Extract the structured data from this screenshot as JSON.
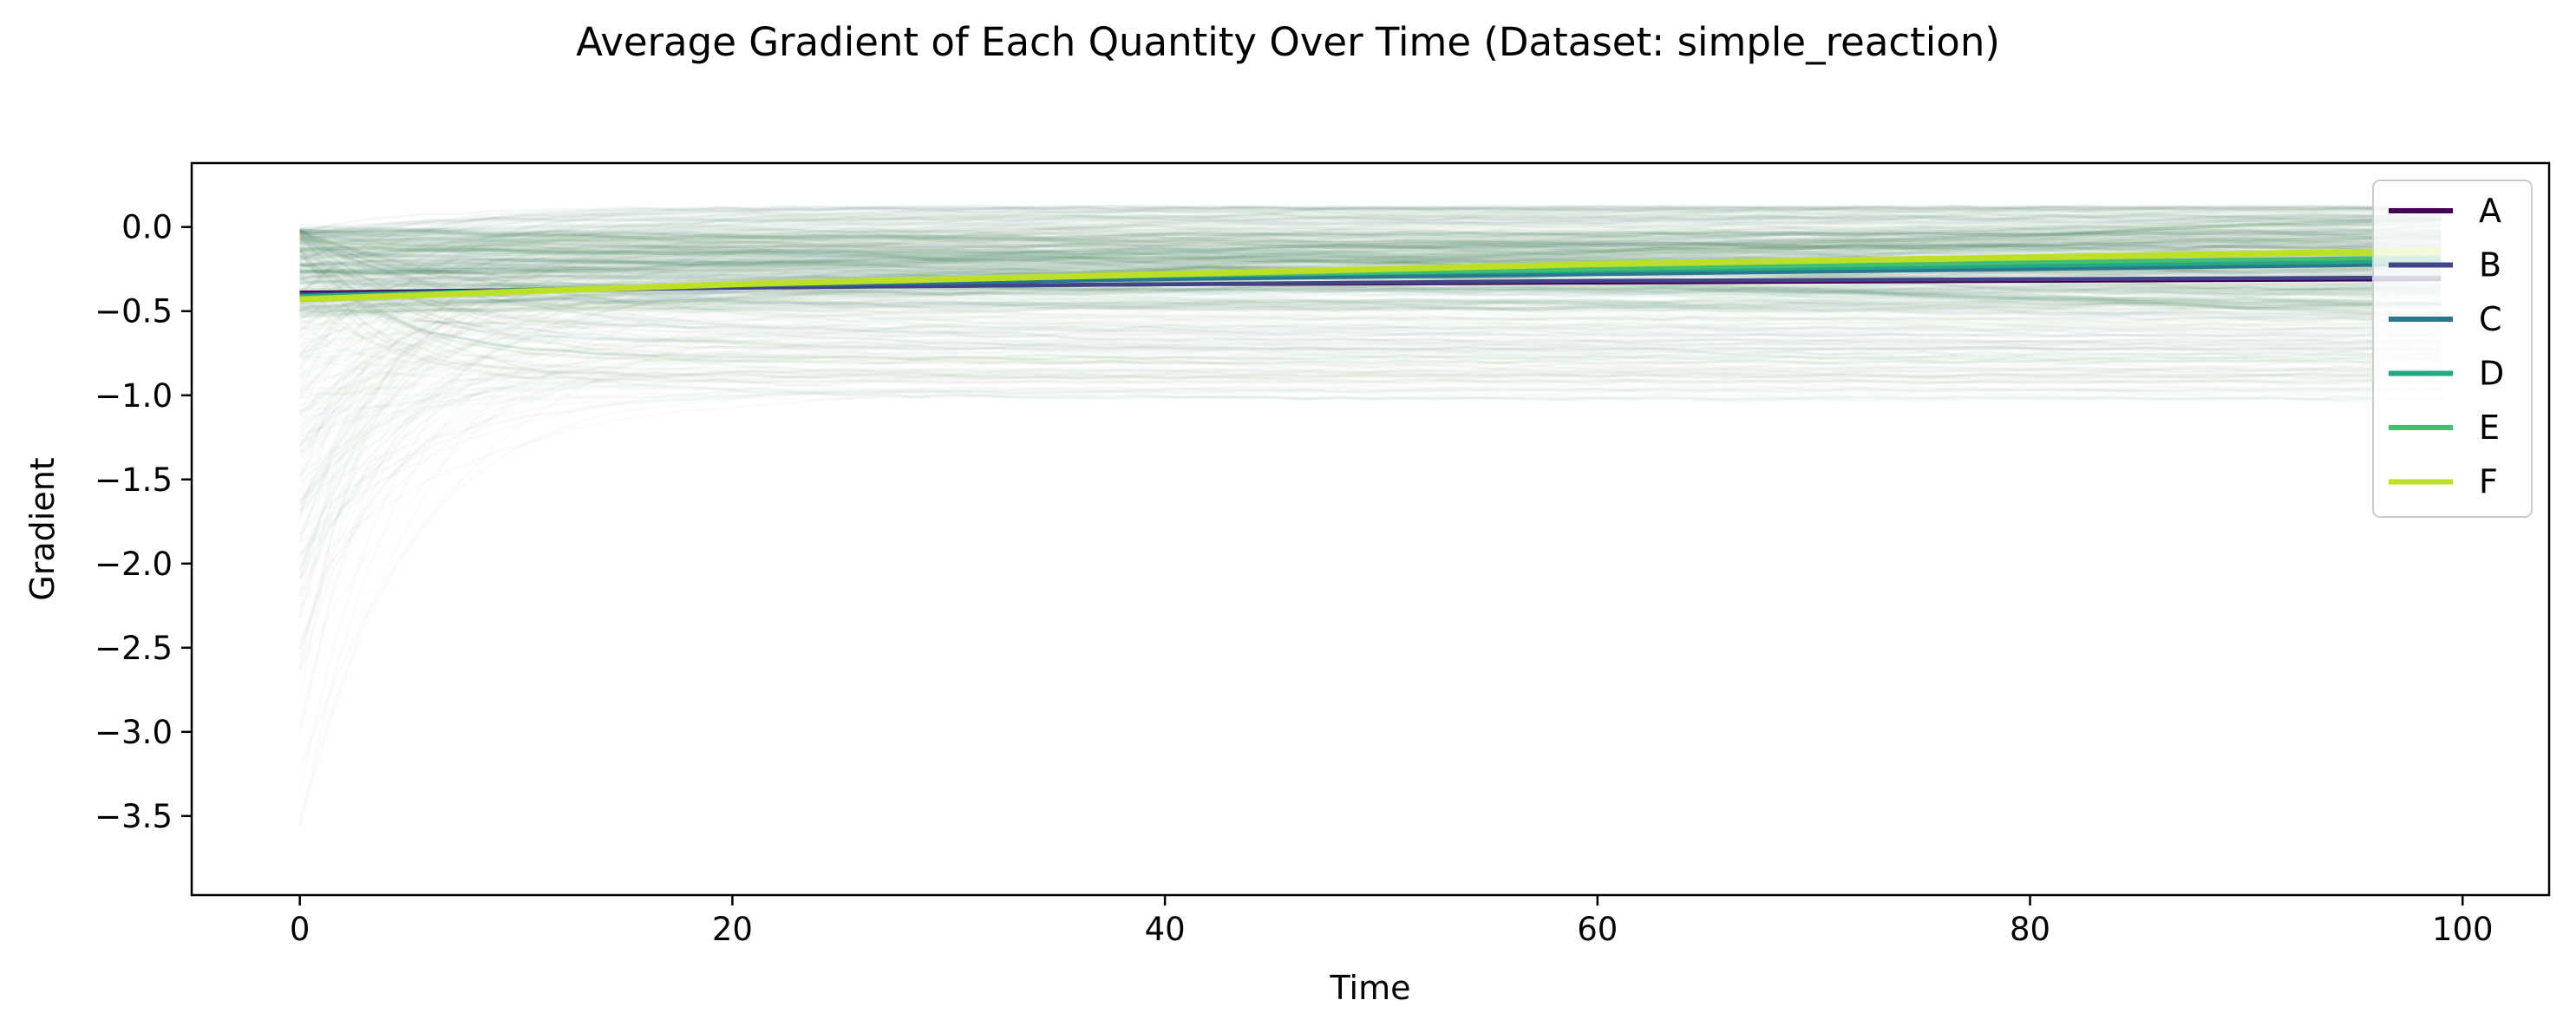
{
  "chart_data": {
    "type": "line",
    "title": "Average Gradient of Each Quantity Over Time (Dataset: simple_reaction)",
    "xlabel": "Time",
    "ylabel": "Gradient",
    "xlim": [
      -5,
      104
    ],
    "ylim": [
      -3.97,
      0.38
    ],
    "xticks": [
      0,
      20,
      40,
      60,
      80,
      100
    ],
    "xtick_labels": [
      "0",
      "20",
      "40",
      "60",
      "80",
      "100"
    ],
    "yticks": [
      0.0,
      -0.5,
      -1.0,
      -1.5,
      -2.0,
      -2.5,
      -3.0,
      -3.5
    ],
    "ytick_labels": [
      "0.0",
      "−0.5",
      "−1.0",
      "−1.5",
      "−2.0",
      "−2.5",
      "−3.0",
      "−3.5"
    ],
    "grid": false,
    "legend_position": "upper right",
    "series": [
      {
        "name": "A",
        "color": "#440154",
        "x": [
          0,
          20,
          40,
          60,
          80,
          99
        ],
        "values": [
          -0.39,
          -0.36,
          -0.34,
          -0.33,
          -0.32,
          -0.31
        ]
      },
      {
        "name": "B",
        "color": "#414487",
        "x": [
          0,
          20,
          40,
          60,
          80,
          99
        ],
        "values": [
          -0.4,
          -0.36,
          -0.34,
          -0.32,
          -0.31,
          -0.3
        ]
      },
      {
        "name": "C",
        "color": "#2a788e",
        "x": [
          0,
          20,
          40,
          60,
          80,
          99
        ],
        "values": [
          -0.41,
          -0.35,
          -0.31,
          -0.28,
          -0.25,
          -0.22
        ]
      },
      {
        "name": "D",
        "color": "#22a884",
        "x": [
          0,
          20,
          40,
          60,
          80,
          99
        ],
        "values": [
          -0.41,
          -0.34,
          -0.29,
          -0.26,
          -0.23,
          -0.2
        ]
      },
      {
        "name": "E",
        "color": "#44bf70",
        "x": [
          0,
          20,
          40,
          60,
          80,
          99
        ],
        "values": [
          -0.42,
          -0.34,
          -0.29,
          -0.25,
          -0.21,
          -0.18
        ]
      },
      {
        "name": "F",
        "color": "#bddf26",
        "x": [
          0,
          20,
          40,
          60,
          80,
          99
        ],
        "values": [
          -0.43,
          -0.34,
          -0.28,
          -0.22,
          -0.18,
          -0.14
        ]
      }
    ],
    "individual_trajectories": {
      "x_range": [
        0,
        99
      ],
      "upper_band": [
        0.0,
        0.05,
        0.1
      ],
      "lower_band_start": [
        -2.4,
        -3.8
      ],
      "lower_band_end": [
        -1.0,
        -1.1
      ],
      "colors": [
        "#2f7d3a",
        "#3b8a50",
        "#1f6e5a",
        "#5a5a8a",
        "#7a8f3a"
      ]
    }
  }
}
